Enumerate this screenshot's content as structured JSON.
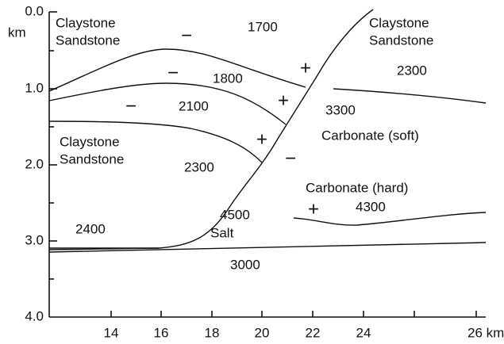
{
  "yaxis": {
    "ticks": [
      "0.0",
      "1.0",
      "2.0",
      "3.0",
      "4.0"
    ],
    "unit": "km"
  },
  "xaxis": {
    "ticks": [
      "14",
      "16",
      "18",
      "20",
      "22",
      "24",
      "26 km"
    ]
  },
  "labels": [
    {
      "lines": [
        "Claystone",
        "Sandstone"
      ]
    },
    {
      "lines": [
        "1700"
      ]
    },
    {
      "lines": [
        "Claystone",
        "Sandstone"
      ]
    },
    {
      "lines": [
        "2300"
      ]
    },
    {
      "lines": [
        "1800"
      ]
    },
    {
      "lines": [
        "2100"
      ]
    },
    {
      "lines": [
        "3300"
      ]
    },
    {
      "lines": [
        "Claystone",
        "Sandstone"
      ]
    },
    {
      "lines": [
        "2300"
      ]
    },
    {
      "lines": [
        "Carbonate (soft)"
      ]
    },
    {
      "lines": [
        "Carbonate (hard)"
      ]
    },
    {
      "lines": [
        "4500"
      ]
    },
    {
      "lines": [
        "4300"
      ]
    },
    {
      "lines": [
        "2400"
      ]
    },
    {
      "lines": [
        "Salt"
      ]
    },
    {
      "lines": [
        "3000"
      ]
    }
  ],
  "signs": [
    "−",
    "−",
    "+",
    "−",
    "+",
    "+",
    "−",
    "+"
  ]
}
